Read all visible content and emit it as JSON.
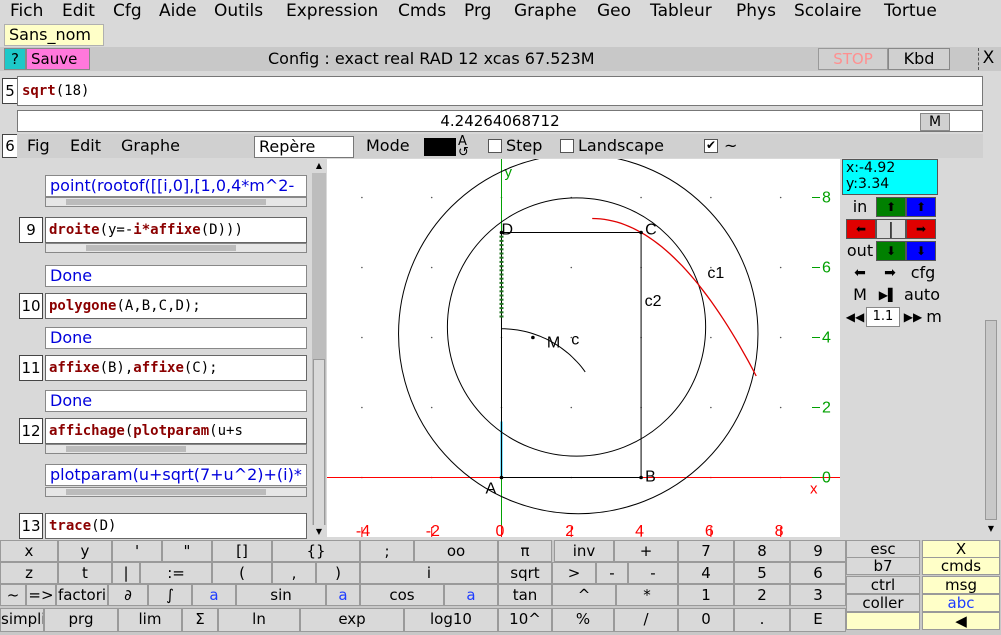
{
  "menu": [
    "Fich",
    "Edit",
    "Cfg",
    "Aide",
    "Outils",
    "Expression",
    "Cmds",
    "Prg",
    "Graphe",
    "Geo",
    "Tableur",
    "Phys",
    "Scolaire",
    "Tortue"
  ],
  "session_tab": "Sans_nom",
  "config": {
    "help": "?",
    "save": "Sauve",
    "text": "Config  : exact real RAD 12 xcas 67.523M",
    "stop": "STOP",
    "kbd": "Kbd",
    "close": "X"
  },
  "level5": {
    "num": "5",
    "cmd_fn": "sqrt",
    "cmd_args": "(18)",
    "output": "4.24264068712",
    "m_btn": "M"
  },
  "level6": {
    "num": "6",
    "menu": [
      "Fig",
      "Edit",
      "Graphe"
    ],
    "repere": "Repère",
    "mode": "Mode",
    "step": "Step",
    "landscape": "Landscape",
    "tilde": "~"
  },
  "history": {
    "top_output": "point(rootof([[i,0],[1,0,4*m^2-",
    "entries": [
      {
        "num": "9",
        "fn": "droite",
        "rest_a": "(y=-",
        "fn2": "i*affixe",
        "rest_b": "(D)))",
        "output": "Done"
      },
      {
        "num": "10",
        "fn": "polygone",
        "rest_a": "(A,B,C,D);",
        "fn2": "",
        "rest_b": "",
        "output": "Done"
      },
      {
        "num": "11",
        "fn": "affixe",
        "rest_a": "(B),",
        "fn2": "affixe",
        "rest_b": "(C);",
        "output": "Done"
      },
      {
        "num": "12",
        "fn": "affichage",
        "rest_a": "(",
        "fn2": "plotparam",
        "rest_b": "(u+s",
        "output": "plotparam(u+sqrt(7+u^2)+(i)*"
      },
      {
        "num": "13",
        "fn": "trace",
        "rest_a": "(D)",
        "fn2": "",
        "rest_b": "",
        "output": ""
      }
    ]
  },
  "graph": {
    "xlim": [
      -5,
      9.7
    ],
    "ylim": [
      -1.7,
      9.1
    ],
    "x_ticks": [
      "-4",
      "-2",
      "0",
      "2",
      "4",
      "6",
      "8"
    ],
    "y_ticks": [
      "8",
      "6",
      "4",
      "2",
      "0"
    ],
    "x_axis_label": "x",
    "y_axis_label": "y",
    "points": [
      {
        "name": "A",
        "x": 0,
        "y": 0
      },
      {
        "name": "B",
        "x": 4,
        "y": 0
      },
      {
        "name": "C",
        "x": 4,
        "y": 7
      },
      {
        "name": "D",
        "x": 0,
        "y": 7
      },
      {
        "name": "M",
        "x": 1,
        "y": 4
      }
    ],
    "curve_labels": [
      "c1",
      "c2",
      "c"
    ],
    "colors": {
      "axis_red": "#ff0000",
      "axis_green": "#00a000",
      "curve": "#000000",
      "c1": "#e00000"
    }
  },
  "graph_panel": {
    "coord_x": "x:-4.92",
    "coord_y": "y:3.34",
    "in": "in",
    "out": "out",
    "cfg": "cfg",
    "m": "M",
    "auto": "auto",
    "zoom_value": "1.1",
    "m_small": "m"
  },
  "keyboard": {
    "row1": [
      "x",
      "y",
      "'",
      "\"",
      "[]",
      "{}",
      ";",
      "oo",
      "π",
      "inv",
      "+",
      "7",
      "8",
      "9"
    ],
    "row2": [
      "z",
      "t",
      "|",
      ":=",
      "(",
      ",",
      ")",
      "i",
      "sqrt",
      ">",
      "-",
      "-",
      "4",
      "5",
      "6"
    ],
    "row3": [
      "~",
      "=>",
      "factori",
      "∂",
      "∫",
      "a",
      "sin",
      "a",
      "cos",
      "a",
      "tan",
      "^",
      "*",
      "1",
      "2",
      "3"
    ],
    "row4": [
      "simplif",
      "prg",
      "lim",
      "Σ",
      "ln",
      "exp",
      "log10",
      "10^",
      "%",
      "/",
      "0",
      ".",
      "E"
    ],
    "side": {
      "esc": "esc",
      "X": "X",
      "b7": "b7",
      "cmds": "cmds",
      "ctrl": "ctrl",
      "msg": "msg",
      "coller": "coller",
      "abc": "abc",
      "back": "◀"
    }
  }
}
